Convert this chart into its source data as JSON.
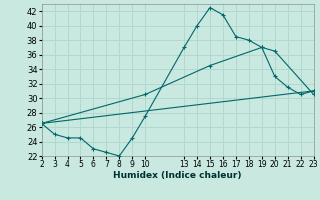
{
  "bg_color": "#c8e8e0",
  "grid_color": "#b0d8d0",
  "line_color": "#006868",
  "xlabel": "Humidex (Indice chaleur)",
  "ylim": [
    22,
    43
  ],
  "xlim": [
    2,
    23
  ],
  "yticks": [
    22,
    24,
    26,
    28,
    30,
    32,
    34,
    36,
    38,
    40,
    42
  ],
  "xticks": [
    2,
    3,
    4,
    5,
    6,
    7,
    8,
    9,
    10,
    13,
    14,
    15,
    16,
    17,
    18,
    19,
    20,
    21,
    22,
    23
  ],
  "line1_x": [
    2,
    3,
    4,
    5,
    6,
    7,
    8,
    9,
    10,
    13,
    14,
    15,
    16,
    17,
    18,
    19,
    20,
    21,
    22,
    23
  ],
  "line1_y": [
    26.5,
    25.0,
    24.5,
    24.5,
    23.0,
    22.5,
    22.0,
    24.5,
    27.5,
    37.0,
    40.0,
    42.5,
    41.5,
    38.5,
    38.0,
    37.0,
    33.0,
    31.5,
    30.5,
    31.0
  ],
  "line2_x": [
    2,
    23
  ],
  "line2_y": [
    26.5,
    31.0
  ],
  "line3_x": [
    2,
    10,
    15,
    19,
    20,
    23
  ],
  "line3_y": [
    26.5,
    30.5,
    34.5,
    37.0,
    36.5,
    30.5
  ]
}
